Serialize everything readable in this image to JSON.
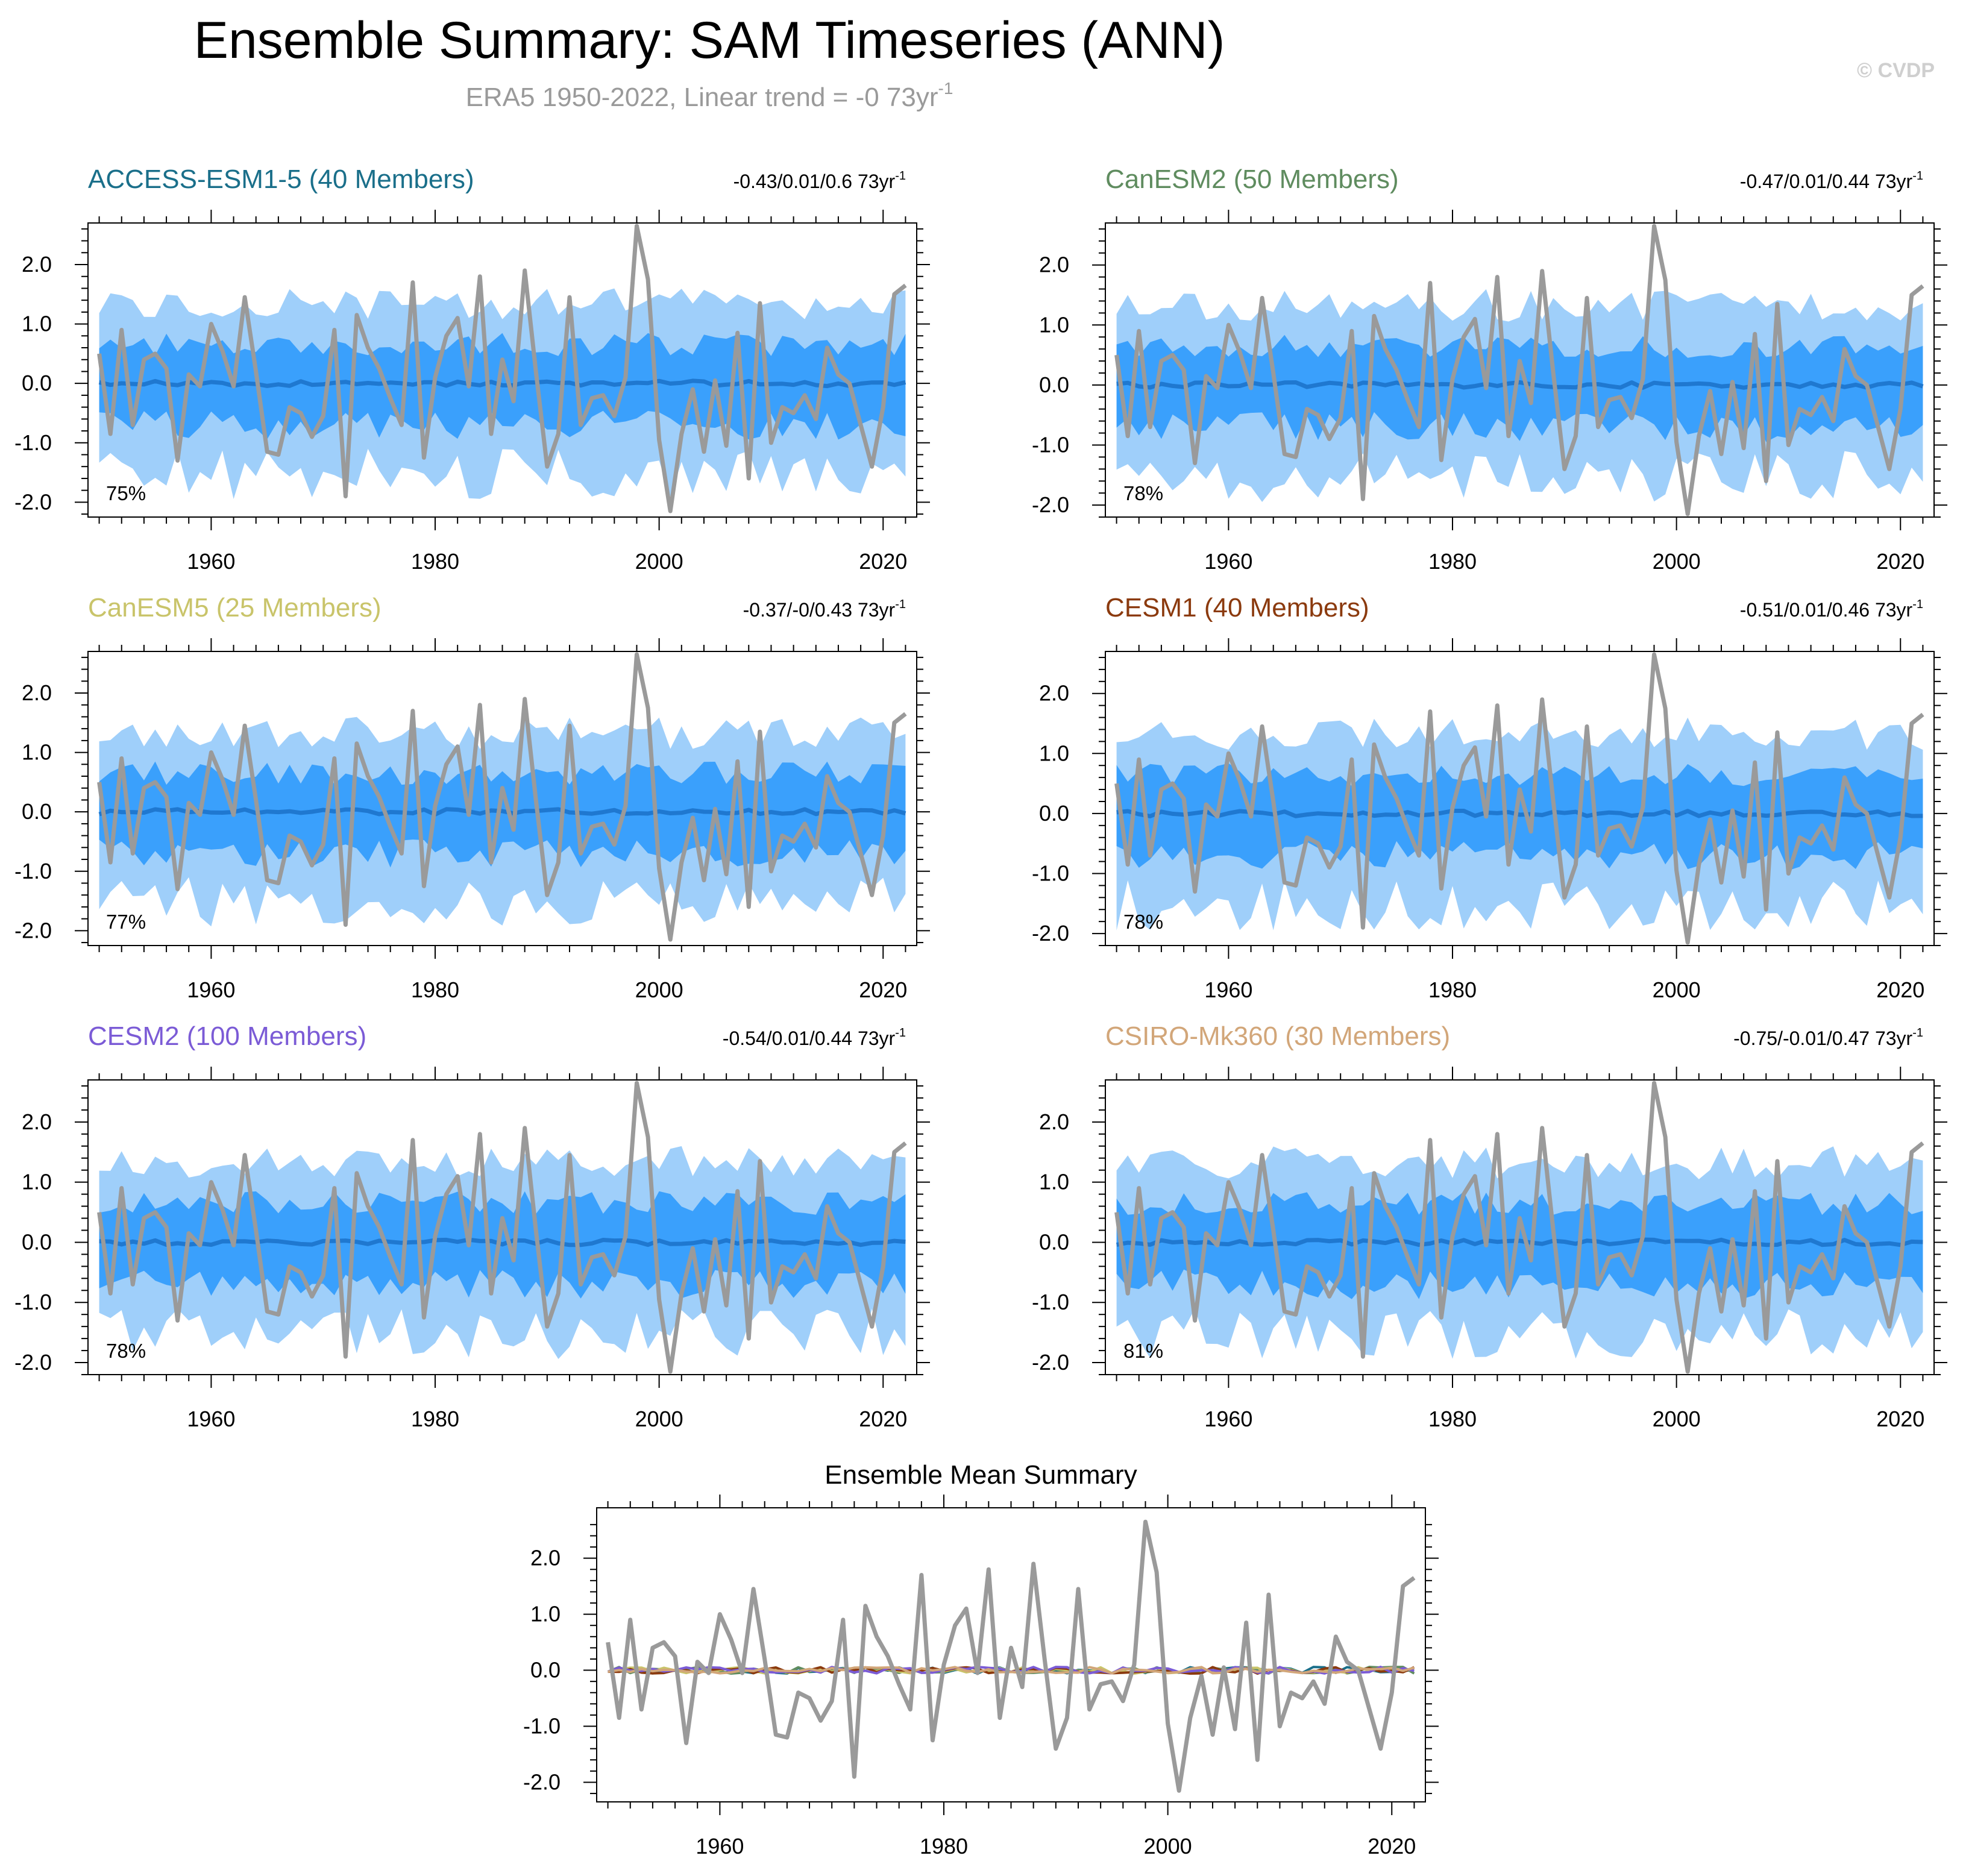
{
  "header": {
    "title": "Ensemble Summary: SAM Timeseries (ANN)",
    "subtitle_prefix": "ERA5 1950-2022, Linear trend = -0 73yr",
    "subtitle_sup": "-1",
    "copyright": "© CVDP"
  },
  "colors": {
    "outer_band": "#9fcffa",
    "inner_band": "#3aa0fc",
    "ensemble_mean_line": "#1f78d0",
    "observations_line": "#9a9a9a",
    "axis": "#000000"
  },
  "chart_data": [
    {
      "type": "area",
      "title": "ACCESS-ESM1-5 (40 Members)",
      "title_color": "#1a6f8a",
      "trend_text": "-0.43/0.01/0.6 73yr",
      "trend_sup": "-1",
      "pct_label": "75%",
      "xlim": [
        1949,
        2023
      ],
      "ylim": [
        -2.25,
        2.7
      ],
      "xticks": [
        "1960",
        "1980",
        "2000",
        "2020"
      ],
      "yticks": [
        "2.0",
        "1.0",
        "0.0",
        "-1.0",
        "-2.0"
      ],
      "seed": 11
    },
    {
      "type": "area",
      "title": "CanESM2 (50 Members)",
      "title_color": "#5f8c5f",
      "trend_text": "-0.47/0.01/0.44 73yr",
      "trend_sup": "-1",
      "pct_label": "78%",
      "xlim": [
        1949,
        2023
      ],
      "ylim": [
        -2.2,
        2.7
      ],
      "xticks": [
        "1960",
        "1980",
        "2000",
        "2020"
      ],
      "yticks": [
        "2.0",
        "1.0",
        "0.0",
        "-1.0",
        "-2.0"
      ],
      "seed": 23
    },
    {
      "type": "area",
      "title": "CanESM5 (25 Members)",
      "title_color": "#c9c46a",
      "trend_text": "-0.37/-0/0.43 73yr",
      "trend_sup": "-1",
      "pct_label": "77%",
      "xlim": [
        1949,
        2023
      ],
      "ylim": [
        -2.25,
        2.7
      ],
      "xticks": [
        "1960",
        "1980",
        "2000",
        "2020"
      ],
      "yticks": [
        "2.0",
        "1.0",
        "0.0",
        "-1.0",
        "-2.0"
      ],
      "seed": 37
    },
    {
      "type": "area",
      "title": "CESM1 (40 Members)",
      "title_color": "#8b3a0e",
      "trend_text": "-0.51/0.01/0.46 73yr",
      "trend_sup": "-1",
      "pct_label": "78%",
      "xlim": [
        1949,
        2023
      ],
      "ylim": [
        -2.2,
        2.7
      ],
      "xticks": [
        "1960",
        "1980",
        "2000",
        "2020"
      ],
      "yticks": [
        "2.0",
        "1.0",
        "0.0",
        "-1.0",
        "-2.0"
      ],
      "seed": 41
    },
    {
      "type": "area",
      "title": "CESM2 (100 Members)",
      "title_color": "#7b5bd6",
      "trend_text": "-0.54/0.01/0.44 73yr",
      "trend_sup": "-1",
      "pct_label": "78%",
      "xlim": [
        1949,
        2023
      ],
      "ylim": [
        -2.2,
        2.7
      ],
      "xticks": [
        "1960",
        "1980",
        "2000",
        "2020"
      ],
      "yticks": [
        "2.0",
        "1.0",
        "0.0",
        "-1.0",
        "-2.0"
      ],
      "seed": 53
    },
    {
      "type": "area",
      "title": "CSIRO-Mk360 (30 Members)",
      "title_color": "#d2a679",
      "trend_text": "-0.75/-0.01/0.47 73yr",
      "trend_sup": "-1",
      "pct_label": "81%",
      "xlim": [
        1949,
        2023
      ],
      "ylim": [
        -2.2,
        2.7
      ],
      "xticks": [
        "1960",
        "1980",
        "2000",
        "2020"
      ],
      "yticks": [
        "2.0",
        "1.0",
        "0.0",
        "-1.0",
        "-2.0"
      ],
      "seed": 67
    },
    {
      "type": "line",
      "title": "Ensemble Mean Summary",
      "title_color": "#000000",
      "xlim": [
        1949,
        2023
      ],
      "ylim": [
        -2.35,
        2.9
      ],
      "xticks": [
        "1960",
        "1980",
        "2000",
        "2020"
      ],
      "yticks": [
        "2.0",
        "1.0",
        "0.0",
        "-1.0",
        "-2.0"
      ],
      "member_colors": [
        "#1a6f8a",
        "#5f8c5f",
        "#c9c46a",
        "#8b3a0e",
        "#7b5bd6",
        "#d2a679"
      ]
    }
  ],
  "observations": {
    "name": "ERA5",
    "years": [
      1950,
      1951,
      1952,
      1953,
      1954,
      1955,
      1956,
      1957,
      1958,
      1959,
      1960,
      1961,
      1962,
      1963,
      1964,
      1965,
      1966,
      1967,
      1968,
      1969,
      1970,
      1971,
      1972,
      1973,
      1974,
      1975,
      1976,
      1977,
      1978,
      1979,
      1980,
      1981,
      1982,
      1983,
      1984,
      1985,
      1986,
      1987,
      1988,
      1989,
      1990,
      1991,
      1992,
      1993,
      1994,
      1995,
      1996,
      1997,
      1998,
      1999,
      2000,
      2001,
      2002,
      2003,
      2004,
      2005,
      2006,
      2007,
      2008,
      2009,
      2010,
      2011,
      2012,
      2013,
      2014,
      2015,
      2016,
      2017,
      2018,
      2019,
      2020,
      2021,
      2022
    ],
    "values": [
      0.5,
      -0.85,
      0.9,
      -0.7,
      0.4,
      0.5,
      0.25,
      -1.3,
      0.15,
      -0.05,
      1.0,
      0.55,
      -0.05,
      1.45,
      0.2,
      -1.15,
      -1.2,
      -0.4,
      -0.5,
      -0.9,
      -0.55,
      0.9,
      -1.9,
      1.15,
      0.6,
      0.25,
      -0.25,
      -0.7,
      1.7,
      -1.25,
      0.1,
      0.8,
      1.1,
      -0.05,
      1.8,
      -0.85,
      0.4,
      -0.3,
      1.9,
      0.2,
      -1.4,
      -0.85,
      1.45,
      -0.7,
      -0.25,
      -0.2,
      -0.55,
      0.1,
      2.65,
      1.75,
      -0.95,
      -2.15,
      -0.85,
      -0.1,
      -1.15,
      0.05,
      -1.05,
      0.85,
      -1.6,
      1.35,
      -1.0,
      -0.4,
      -0.5,
      -0.2,
      -0.6,
      0.6,
      0.15,
      0.0,
      -0.7,
      -1.4,
      -0.4,
      1.5,
      1.65
    ]
  }
}
